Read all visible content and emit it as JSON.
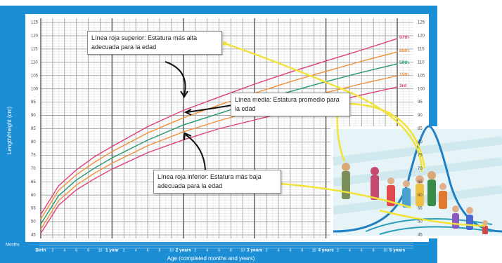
{
  "chart_data": {
    "type": "line",
    "x_label": "Age (completed months and years)",
    "y_label": "Length/Height (cm)",
    "months_label": "Months",
    "x": [
      0,
      3,
      6,
      9,
      12,
      18,
      24,
      30,
      36,
      42,
      48,
      54,
      60
    ],
    "xlim": [
      0,
      60
    ],
    "ylim": [
      45,
      125
    ],
    "yticks": [
      45,
      50,
      55,
      60,
      65,
      70,
      75,
      80,
      85,
      90,
      95,
      100,
      105,
      110,
      115,
      120,
      125
    ],
    "xticks": [
      {
        "value": 0,
        "label": "Birth"
      },
      {
        "value": 2,
        "label": "2"
      },
      {
        "value": 4,
        "label": "4"
      },
      {
        "value": 6,
        "label": "6"
      },
      {
        "value": 8,
        "label": "8"
      },
      {
        "value": 10,
        "label": "10"
      },
      {
        "value": 12,
        "label": "1 year"
      },
      {
        "value": 14,
        "label": "2"
      },
      {
        "value": 16,
        "label": "4"
      },
      {
        "value": 18,
        "label": "6"
      },
      {
        "value": 20,
        "label": "8"
      },
      {
        "value": 22,
        "label": "10"
      },
      {
        "value": 24,
        "label": "2 years"
      },
      {
        "value": 26,
        "label": "2"
      },
      {
        "value": 28,
        "label": "4"
      },
      {
        "value": 30,
        "label": "6"
      },
      {
        "value": 32,
        "label": "8"
      },
      {
        "value": 34,
        "label": "10"
      },
      {
        "value": 36,
        "label": "3 years"
      },
      {
        "value": 38,
        "label": "2"
      },
      {
        "value": 40,
        "label": "4"
      },
      {
        "value": 42,
        "label": "6"
      },
      {
        "value": 44,
        "label": "8"
      },
      {
        "value": 46,
        "label": "10"
      },
      {
        "value": 48,
        "label": "4 years"
      },
      {
        "value": 50,
        "label": "2"
      },
      {
        "value": 52,
        "label": "4"
      },
      {
        "value": 54,
        "label": "6"
      },
      {
        "value": 56,
        "label": "8"
      },
      {
        "value": 58,
        "label": "10"
      },
      {
        "value": 60,
        "label": "5 years"
      }
    ],
    "grid": true,
    "series": [
      {
        "name": "97th",
        "color": "#e0407a",
        "values": [
          52.7,
          63.5,
          69.5,
          74.4,
          78.3,
          85.8,
          91.9,
          96.9,
          101.8,
          106.3,
          110.5,
          114.6,
          118.9
        ]
      },
      {
        "name": "85th",
        "color": "#f0903c",
        "values": [
          51.0,
          61.8,
          67.7,
          72.3,
          76.4,
          83.4,
          89.1,
          93.9,
          98.4,
          102.7,
          106.6,
          110.4,
          113.9
        ]
      },
      {
        "name": "50th",
        "color": "#239a6a",
        "values": [
          49.1,
          59.8,
          65.7,
          70.1,
          74.0,
          80.7,
          86.4,
          90.7,
          95.1,
          99.0,
          102.7,
          106.2,
          109.4
        ]
      },
      {
        "name": "15th",
        "color": "#f0903c",
        "values": [
          47.2,
          57.9,
          63.8,
          68.2,
          72.0,
          78.6,
          83.8,
          88.0,
          91.8,
          95.3,
          98.6,
          101.9,
          104.9
        ]
      },
      {
        "name": "3rd",
        "color": "#e0407a",
        "values": [
          45.6,
          56.2,
          62.0,
          66.1,
          69.8,
          76.0,
          80.8,
          85.0,
          88.3,
          91.6,
          94.6,
          97.7,
          100.7
        ]
      }
    ],
    "annotations": [
      "Línea roja superior: Estatura más alta adecuada para la edad",
      "Línea media: Estatura promedio para la edad",
      "Línea roja inferior: Estatura más baja adecuada para la edad"
    ]
  }
}
